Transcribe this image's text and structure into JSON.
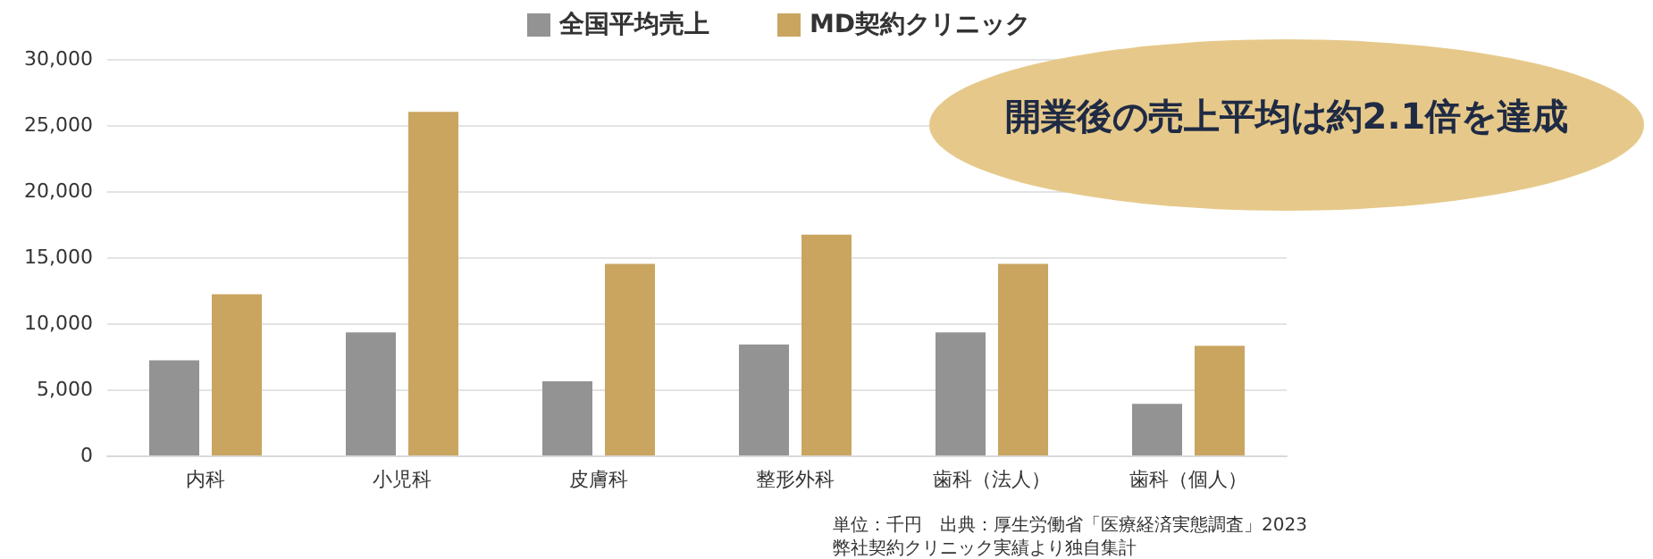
{
  "chart_data": {
    "type": "bar",
    "categories": [
      "内科",
      "小児科",
      "皮膚科",
      "整形外科",
      "歯科（法人）",
      "歯科（個人）"
    ],
    "series": [
      {
        "name": "全国平均売上",
        "color": "#939393",
        "values": [
          7200,
          9300,
          5600,
          8400,
          9300,
          3900
        ]
      },
      {
        "name": "MD契約クリニック",
        "color": "#c9a560",
        "values": [
          12200,
          26000,
          14500,
          16700,
          14500,
          8300
        ]
      }
    ],
    "ylim": [
      0,
      30000
    ],
    "yticks": [
      0,
      {
        "value": 5000,
        "label": "5,000"
      },
      {
        "value": 10000,
        "label": "10,000"
      },
      {
        "value": 15000,
        "label": "15,000"
      },
      {
        "value": 20000,
        "label": "20,000"
      },
      {
        "value": 25000,
        "label": "25,000"
      },
      {
        "value": 30000,
        "label": "30,000"
      }
    ],
    "grid": "y",
    "legend": "top",
    "annotations": [
      "開業後の売上平均は約2.1倍を達成",
      "単位：千円　出典：厚生労働省「医療経済実態調査」2023",
      "弊社契約クリニック実績より独自集計"
    ]
  }
}
